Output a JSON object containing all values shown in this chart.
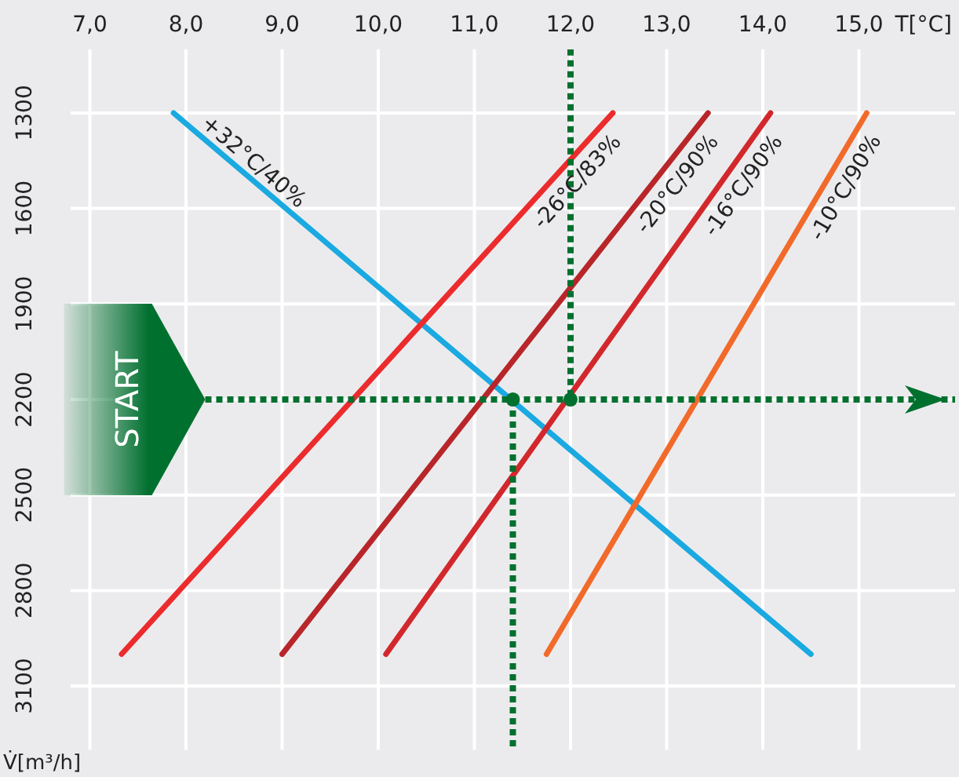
{
  "chart_data": {
    "type": "line",
    "xlabel": "T[°C]",
    "ylabel": "V̇[m³/h]",
    "xlim": [
      6.8,
      16.0
    ],
    "xticks": [
      {
        "value": 7,
        "label": "7,0"
      },
      {
        "value": 8,
        "label": "8,0"
      },
      {
        "value": 9,
        "label": "9,0"
      },
      {
        "value": 10,
        "label": "10,0"
      },
      {
        "value": 11,
        "label": "11,0"
      },
      {
        "value": 12,
        "label": "12,0"
      },
      {
        "value": 13,
        "label": "13,0"
      },
      {
        "value": 14,
        "label": "14,0"
      },
      {
        "value": 15,
        "label": "15,0"
      }
    ],
    "ylim": [
      3300,
      1100
    ],
    "yticks": [
      1300,
      1600,
      1900,
      2200,
      2500,
      2800,
      3100
    ],
    "grid": true,
    "legend": false,
    "annotations": [
      "START"
    ],
    "series": [
      {
        "name": "+32°C/40%",
        "color": "#1aa9e1",
        "x": [
          7.87,
          14.5
        ],
        "values": [
          1300,
          3000
        ]
      },
      {
        "name": "-26°C/83%",
        "color": "#ec2b2d",
        "x": [
          7.33,
          12.44
        ],
        "values": [
          3000,
          1300
        ]
      },
      {
        "name": "-20°C/90%",
        "color": "#b8262a",
        "x": [
          9.0,
          13.43
        ],
        "values": [
          3000,
          1300
        ]
      },
      {
        "name": "-16°C/90%",
        "color": "#d2282c",
        "x": [
          10.08,
          14.08
        ],
        "values": [
          3000,
          1300
        ]
      },
      {
        "name": "-10°C/90%",
        "color": "#f26a2a",
        "x": [
          11.75,
          15.08
        ],
        "values": [
          3000,
          1300
        ]
      },
      {
        "type": "line",
        "line_style": "dotted",
        "color": "#00702f",
        "x": [
          8.2,
          16.0
        ],
        "values": [
          2200,
          2200
        ]
      },
      {
        "type": "line",
        "line_style": "dotted",
        "color": "#00702f",
        "x": [
          11.4,
          11.4
        ],
        "values": [
          2200,
          3300
        ]
      },
      {
        "type": "line",
        "line_style": "dotted",
        "color": "#00702f",
        "x": [
          12.0,
          12.0
        ],
        "values": [
          1100,
          2200
        ]
      },
      {
        "type": "scatter",
        "marker": "circle",
        "color": "#00702f",
        "x": [
          11.4,
          12.0
        ],
        "values": [
          2200,
          2200
        ]
      }
    ]
  }
}
